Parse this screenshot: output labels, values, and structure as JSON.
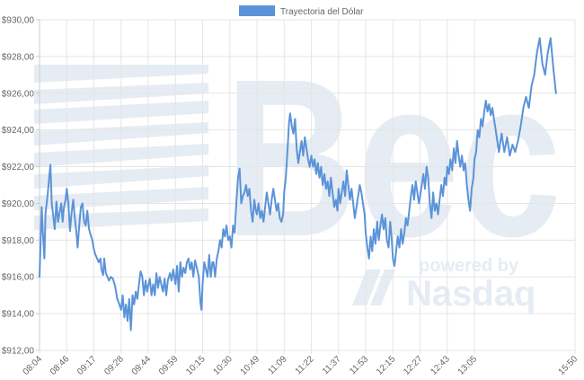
{
  "watermark": {
    "brand_text": "Bec",
    "powered_text": "powered by",
    "nasdaq_text": "Nasdaq"
  },
  "chart_data": {
    "type": "line",
    "series": [
      {
        "name": "Trayectoria del Dólar",
        "color": "#5b93d8"
      }
    ],
    "legend_position": "top",
    "ylim": [
      912,
      930
    ],
    "y_ticks": [
      "$912,00",
      "$914,00",
      "$916,00",
      "$918,00",
      "$920,00",
      "$922,00",
      "$924,00",
      "$926,00",
      "$928,00",
      "$930,00"
    ],
    "x_ticks": [
      "08:04",
      "08:46",
      "09:17",
      "09:28",
      "09:44",
      "09:59",
      "10:15",
      "10:30",
      "10:49",
      "11:09",
      "11:22",
      "11:37",
      "11:53",
      "12:15",
      "12:27",
      "12:43",
      "13:05",
      "15:50"
    ],
    "x_tick_index": [
      0,
      1,
      2,
      3,
      4,
      5,
      6,
      7,
      8,
      9,
      10,
      11,
      12,
      13,
      14,
      15,
      16,
      19.7
    ],
    "points": [
      [
        0.0,
        916.0
      ],
      [
        0.04,
        918.0
      ],
      [
        0.08,
        919.8
      ],
      [
        0.12,
        918.5
      ],
      [
        0.18,
        917.0
      ],
      [
        0.22,
        919.5
      ],
      [
        0.3,
        920.5
      ],
      [
        0.36,
        921.5
      ],
      [
        0.4,
        922.1
      ],
      [
        0.45,
        920.0
      ],
      [
        0.5,
        919.4
      ],
      [
        0.56,
        918.6
      ],
      [
        0.62,
        920.1
      ],
      [
        0.68,
        919.0
      ],
      [
        0.75,
        919.6
      ],
      [
        0.8,
        920.0
      ],
      [
        0.85,
        919.0
      ],
      [
        0.9,
        919.8
      ],
      [
        0.96,
        920.2
      ],
      [
        1.0,
        920.8
      ],
      [
        1.06,
        920.0
      ],
      [
        1.12,
        918.5
      ],
      [
        1.18,
        919.5
      ],
      [
        1.24,
        920.2
      ],
      [
        1.3,
        919.2
      ],
      [
        1.36,
        918.4
      ],
      [
        1.4,
        917.6
      ],
      [
        1.46,
        918.8
      ],
      [
        1.52,
        919.8
      ],
      [
        1.58,
        920.0
      ],
      [
        1.64,
        919.0
      ],
      [
        1.7,
        918.8
      ],
      [
        1.76,
        919.6
      ],
      [
        1.82,
        918.6
      ],
      [
        1.88,
        918.3
      ],
      [
        1.94,
        918.0
      ],
      [
        2.0,
        917.5
      ],
      [
        2.06,
        917.2
      ],
      [
        2.12,
        917.0
      ],
      [
        2.18,
        916.8
      ],
      [
        2.24,
        917.0
      ],
      [
        2.28,
        916.4
      ],
      [
        2.34,
        916.1
      ],
      [
        2.38,
        917.0
      ],
      [
        2.44,
        916.2
      ],
      [
        2.5,
        916.0
      ],
      [
        2.56,
        915.8
      ],
      [
        2.62,
        916.0
      ],
      [
        2.7,
        915.9
      ],
      [
        2.78,
        915.5
      ],
      [
        2.86,
        914.8
      ],
      [
        2.94,
        914.5
      ],
      [
        3.0,
        914.2
      ],
      [
        3.06,
        915.0
      ],
      [
        3.12,
        913.8
      ],
      [
        3.18,
        914.5
      ],
      [
        3.24,
        913.6
      ],
      [
        3.3,
        914.8
      ],
      [
        3.36,
        913.1
      ],
      [
        3.42,
        915.0
      ],
      [
        3.48,
        914.5
      ],
      [
        3.54,
        915.2
      ],
      [
        3.6,
        914.8
      ],
      [
        3.66,
        915.6
      ],
      [
        3.72,
        916.3
      ],
      [
        3.78,
        916.0
      ],
      [
        3.84,
        915.0
      ],
      [
        3.9,
        915.8
      ],
      [
        3.96,
        915.2
      ],
      [
        4.0,
        915.5
      ],
      [
        4.06,
        915.9
      ],
      [
        4.12,
        915.0
      ],
      [
        4.18,
        915.6
      ],
      [
        4.24,
        915.0
      ],
      [
        4.3,
        916.2
      ],
      [
        4.36,
        915.4
      ],
      [
        4.42,
        916.0
      ],
      [
        4.48,
        915.6
      ],
      [
        4.54,
        915.2
      ],
      [
        4.6,
        915.9
      ],
      [
        4.66,
        915.0
      ],
      [
        4.72,
        915.8
      ],
      [
        4.8,
        916.2
      ],
      [
        4.86,
        915.8
      ],
      [
        4.92,
        916.4
      ],
      [
        5.0,
        915.6
      ],
      [
        5.06,
        916.6
      ],
      [
        5.12,
        915.2
      ],
      [
        5.18,
        916.8
      ],
      [
        5.24,
        916.0
      ],
      [
        5.3,
        916.5
      ],
      [
        5.36,
        916.2
      ],
      [
        5.42,
        916.8
      ],
      [
        5.48,
        917.0
      ],
      [
        5.54,
        916.4
      ],
      [
        5.6,
        916.8
      ],
      [
        5.66,
        916.0
      ],
      [
        5.72,
        916.9
      ],
      [
        5.8,
        916.4
      ],
      [
        5.86,
        916.0
      ],
      [
        5.92,
        914.6
      ],
      [
        5.96,
        914.2
      ],
      [
        6.0,
        915.6
      ],
      [
        6.06,
        916.8
      ],
      [
        6.12,
        916.4
      ],
      [
        6.18,
        916.0
      ],
      [
        6.24,
        917.2
      ],
      [
        6.3,
        916.0
      ],
      [
        6.36,
        916.8
      ],
      [
        6.4,
        916.8
      ],
      [
        6.46,
        916.0
      ],
      [
        6.52,
        917.0
      ],
      [
        6.58,
        917.4
      ],
      [
        6.64,
        918.0
      ],
      [
        6.7,
        917.6
      ],
      [
        6.76,
        918.6
      ],
      [
        6.82,
        918.2
      ],
      [
        6.88,
        918.8
      ],
      [
        6.94,
        918.0
      ],
      [
        7.0,
        918.2
      ],
      [
        7.06,
        917.6
      ],
      [
        7.12,
        918.8
      ],
      [
        7.18,
        918.4
      ],
      [
        7.24,
        920.0
      ],
      [
        7.3,
        921.4
      ],
      [
        7.36,
        921.9
      ],
      [
        7.42,
        920.0
      ],
      [
        7.48,
        920.4
      ],
      [
        7.54,
        920.6
      ],
      [
        7.6,
        921.0
      ],
      [
        7.66,
        920.4
      ],
      [
        7.72,
        920.8
      ],
      [
        7.78,
        919.6
      ],
      [
        7.84,
        919.0
      ],
      [
        7.9,
        920.2
      ],
      [
        7.96,
        919.6
      ],
      [
        8.0,
        919.4
      ],
      [
        8.06,
        920.0
      ],
      [
        8.12,
        919.2
      ],
      [
        8.18,
        919.6
      ],
      [
        8.24,
        919.0
      ],
      [
        8.3,
        919.8
      ],
      [
        8.36,
        920.6
      ],
      [
        8.42,
        920.0
      ],
      [
        8.48,
        919.4
      ],
      [
        8.54,
        920.2
      ],
      [
        8.6,
        920.8
      ],
      [
        8.66,
        920.2
      ],
      [
        8.72,
        919.6
      ],
      [
        8.78,
        920.0
      ],
      [
        8.84,
        919.2
      ],
      [
        8.9,
        919.0
      ],
      [
        8.96,
        919.4
      ],
      [
        9.0,
        920.6
      ],
      [
        9.06,
        921.4
      ],
      [
        9.12,
        922.8
      ],
      [
        9.18,
        924.4
      ],
      [
        9.22,
        924.9
      ],
      [
        9.28,
        924.2
      ],
      [
        9.34,
        923.8
      ],
      [
        9.4,
        924.6
      ],
      [
        9.46,
        923.0
      ],
      [
        9.52,
        922.2
      ],
      [
        9.58,
        922.8
      ],
      [
        9.64,
        923.4
      ],
      [
        9.7,
        922.6
      ],
      [
        9.76,
        923.6
      ],
      [
        9.82,
        923.0
      ],
      [
        9.88,
        922.4
      ],
      [
        9.94,
        922.0
      ],
      [
        10.0,
        922.6
      ],
      [
        10.06,
        922.0
      ],
      [
        10.12,
        922.4
      ],
      [
        10.18,
        921.6
      ],
      [
        10.24,
        922.2
      ],
      [
        10.3,
        921.4
      ],
      [
        10.36,
        922.0
      ],
      [
        10.42,
        921.0
      ],
      [
        10.48,
        921.6
      ],
      [
        10.54,
        920.8
      ],
      [
        10.6,
        921.2
      ],
      [
        10.66,
        920.4
      ],
      [
        10.72,
        921.4
      ],
      [
        10.78,
        920.6
      ],
      [
        10.84,
        919.8
      ],
      [
        10.9,
        920.2
      ],
      [
        10.96,
        919.6
      ],
      [
        11.0,
        920.8
      ],
      [
        11.06,
        920.0
      ],
      [
        11.12,
        920.6
      ],
      [
        11.18,
        921.2
      ],
      [
        11.24,
        920.4
      ],
      [
        11.3,
        921.8
      ],
      [
        11.36,
        921.0
      ],
      [
        11.42,
        920.2
      ],
      [
        11.48,
        920.8
      ],
      [
        11.54,
        920.0
      ],
      [
        11.6,
        919.2
      ],
      [
        11.66,
        919.8
      ],
      [
        11.72,
        920.4
      ],
      [
        11.78,
        921.0
      ],
      [
        11.84,
        920.6
      ],
      [
        11.9,
        920.0
      ],
      [
        11.96,
        919.4
      ],
      [
        12.0,
        918.4
      ],
      [
        12.06,
        917.6
      ],
      [
        12.12,
        917.0
      ],
      [
        12.18,
        918.2
      ],
      [
        12.24,
        917.4
      ],
      [
        12.3,
        918.6
      ],
      [
        12.36,
        917.8
      ],
      [
        12.42,
        919.0
      ],
      [
        12.48,
        918.0
      ],
      [
        12.54,
        918.8
      ],
      [
        12.6,
        919.4
      ],
      [
        12.66,
        918.6
      ],
      [
        12.72,
        919.2
      ],
      [
        12.78,
        918.0
      ],
      [
        12.84,
        917.6
      ],
      [
        12.9,
        919.0
      ],
      [
        12.96,
        918.0
      ],
      [
        13.0,
        917.0
      ],
      [
        13.06,
        916.6
      ],
      [
        13.12,
        917.4
      ],
      [
        13.18,
        918.2
      ],
      [
        13.24,
        917.6
      ],
      [
        13.3,
        918.6
      ],
      [
        13.36,
        917.8
      ],
      [
        13.42,
        918.4
      ],
      [
        13.48,
        919.2
      ],
      [
        13.54,
        918.8
      ],
      [
        13.6,
        919.6
      ],
      [
        13.66,
        920.4
      ],
      [
        13.72,
        921.0
      ],
      [
        13.78,
        920.2
      ],
      [
        13.84,
        921.2
      ],
      [
        13.9,
        920.6
      ],
      [
        13.96,
        920.0
      ],
      [
        14.0,
        920.4
      ],
      [
        14.06,
        921.0
      ],
      [
        14.12,
        921.6
      ],
      [
        14.18,
        920.8
      ],
      [
        14.24,
        922.0
      ],
      [
        14.3,
        921.4
      ],
      [
        14.36,
        920.0
      ],
      [
        14.42,
        919.2
      ],
      [
        14.48,
        920.6
      ],
      [
        14.54,
        919.6
      ],
      [
        14.6,
        920.0
      ],
      [
        14.66,
        919.4
      ],
      [
        14.72,
        920.2
      ],
      [
        14.78,
        921.0
      ],
      [
        14.84,
        920.4
      ],
      [
        14.9,
        921.4
      ],
      [
        14.96,
        921.0
      ],
      [
        15.0,
        922.0
      ],
      [
        15.06,
        921.6
      ],
      [
        15.12,
        922.4
      ],
      [
        15.18,
        921.8
      ],
      [
        15.24,
        923.0
      ],
      [
        15.3,
        922.2
      ],
      [
        15.36,
        923.4
      ],
      [
        15.42,
        922.6
      ],
      [
        15.48,
        922.0
      ],
      [
        15.54,
        922.6
      ],
      [
        15.6,
        921.8
      ],
      [
        15.66,
        922.2
      ],
      [
        15.72,
        921.0
      ],
      [
        15.78,
        920.2
      ],
      [
        15.84,
        919.6
      ],
      [
        15.9,
        920.8
      ],
      [
        15.96,
        921.4
      ],
      [
        16.0,
        922.4
      ],
      [
        16.06,
        922.8
      ],
      [
        16.12,
        924.0
      ],
      [
        16.18,
        923.6
      ],
      [
        16.24,
        924.6
      ],
      [
        16.3,
        924.2
      ],
      [
        16.36,
        925.0
      ],
      [
        16.42,
        925.6
      ],
      [
        16.48,
        925.0
      ],
      [
        16.54,
        925.4
      ],
      [
        16.6,
        924.8
      ],
      [
        16.66,
        925.2
      ],
      [
        16.72,
        924.6
      ],
      [
        16.78,
        924.0
      ],
      [
        16.84,
        923.4
      ],
      [
        16.9,
        922.8
      ],
      [
        16.96,
        923.4
      ],
      [
        17.0,
        923.8
      ],
      [
        17.1,
        922.8
      ],
      [
        17.2,
        923.6
      ],
      [
        17.3,
        922.6
      ],
      [
        17.4,
        923.2
      ],
      [
        17.5,
        922.8
      ],
      [
        17.6,
        923.4
      ],
      [
        17.7,
        924.2
      ],
      [
        17.8,
        925.2
      ],
      [
        17.9,
        925.8
      ],
      [
        18.0,
        925.2
      ],
      [
        18.1,
        926.4
      ],
      [
        18.2,
        927.0
      ],
      [
        18.3,
        928.2
      ],
      [
        18.4,
        929.0
      ],
      [
        18.5,
        927.6
      ],
      [
        18.6,
        927.0
      ],
      [
        18.7,
        928.2
      ],
      [
        18.8,
        929.0
      ],
      [
        18.9,
        927.4
      ],
      [
        19.0,
        926.0
      ]
    ]
  }
}
